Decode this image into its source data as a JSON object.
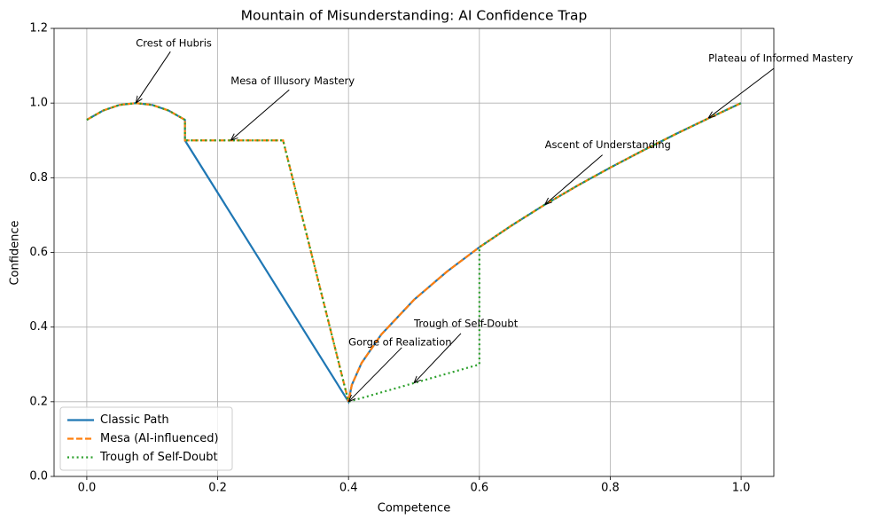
{
  "chart_data": {
    "type": "line",
    "title": "Mountain of Misunderstanding: AI Confidence Trap",
    "xlabel": "Competence",
    "ylabel": "Confidence",
    "xlim": [
      -0.05,
      1.05
    ],
    "ylim": [
      0,
      1.2
    ],
    "xticks": [
      {
        "value": 0,
        "label": "0.0"
      },
      0.2,
      0.4,
      0.6,
      0.8,
      {
        "value": 1,
        "label": "1.0"
      }
    ],
    "yticks": [
      {
        "value": 0,
        "label": "0.0"
      },
      0.2,
      0.4,
      0.6,
      0.8,
      {
        "value": 1,
        "label": "1.0"
      },
      1.2
    ],
    "grid": true,
    "legend": "lower left",
    "series": [
      {
        "name": "Classic Path",
        "color": "#1f77b4",
        "dash": "solid",
        "x": [
          0,
          0.025,
          0.05,
          0.075,
          0.1,
          0.125,
          0.15,
          0.15,
          0.4,
          0.405,
          0.42,
          0.45,
          0.5,
          0.55,
          0.6,
          0.65,
          0.7,
          0.75,
          0.8,
          0.85,
          0.9,
          0.95,
          1.0
        ],
        "values": [
          0.955,
          0.98,
          0.995,
          1.0,
          0.995,
          0.98,
          0.955,
          0.9,
          0.2,
          0.245,
          0.304,
          0.38,
          0.473,
          0.548,
          0.614,
          0.673,
          0.728,
          0.779,
          0.827,
          0.873,
          0.917,
          0.959,
          1.0
        ]
      },
      {
        "name": "Mesa (AI-influenced)",
        "color": "#ff7f0e",
        "dash": "dashed",
        "x": [
          0,
          0.025,
          0.05,
          0.075,
          0.1,
          0.125,
          0.15,
          0.15,
          0.3,
          0.4,
          0.405,
          0.42,
          0.45,
          0.5,
          0.55,
          0.6,
          0.65,
          0.7,
          0.75,
          0.8,
          0.85,
          0.9,
          0.95,
          1.0
        ],
        "values": [
          0.955,
          0.98,
          0.995,
          1.0,
          0.995,
          0.98,
          0.955,
          0.9,
          0.9,
          0.2,
          0.245,
          0.304,
          0.38,
          0.473,
          0.548,
          0.614,
          0.673,
          0.728,
          0.779,
          0.827,
          0.873,
          0.917,
          0.959,
          1.0
        ]
      },
      {
        "name": "Trough of Self-Doubt",
        "color": "#2ca02c",
        "dash": "dotted",
        "x": [
          0,
          0.025,
          0.05,
          0.075,
          0.1,
          0.125,
          0.15,
          0.15,
          0.3,
          0.4,
          0.6,
          0.6,
          0.65,
          0.7,
          0.75,
          0.8,
          0.85,
          0.9,
          0.95,
          1.0
        ],
        "values": [
          0.955,
          0.98,
          0.995,
          1.0,
          0.995,
          0.98,
          0.955,
          0.9,
          0.9,
          0.2,
          0.3,
          0.614,
          0.673,
          0.728,
          0.779,
          0.827,
          0.873,
          0.917,
          0.959,
          1.0
        ]
      }
    ],
    "annotations": [
      {
        "text": "Crest of Hubris",
        "x": 0.075,
        "y": 1.0
      },
      {
        "text": "Mesa of Illusory Mastery",
        "x": 0.22,
        "y": 0.9
      },
      {
        "text": "Gorge of Realization",
        "x": 0.4,
        "y": 0.2
      },
      {
        "text": "Trough of Self-Doubt",
        "x": 0.5,
        "y": 0.25
      },
      {
        "text": "Ascent of Understanding",
        "x": 0.7,
        "y": 0.728
      },
      {
        "text": "Plateau of Informed Mastery",
        "x": 0.95,
        "y": 0.96
      }
    ]
  }
}
